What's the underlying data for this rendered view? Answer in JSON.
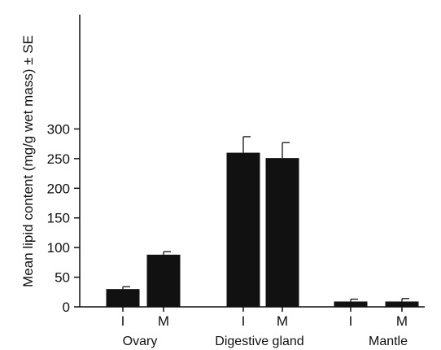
{
  "chart_data": {
    "type": "bar",
    "ylabel": "Mean lipid content (mg/g wet mass) ± SE",
    "ylim": [
      0,
      320
    ],
    "yticks": [
      0,
      50,
      100,
      150,
      200,
      250,
      300
    ],
    "grid": false,
    "groups": [
      {
        "name": "Ovary",
        "bars": [
          {
            "label": "I",
            "value": 30,
            "error": 4
          },
          {
            "label": "M",
            "value": 88,
            "error": 5
          }
        ]
      },
      {
        "name": "Digestive gland",
        "bars": [
          {
            "label": "I",
            "value": 260,
            "error": 27
          },
          {
            "label": "M",
            "value": 251,
            "error": 26
          }
        ]
      },
      {
        "name": "Mantle",
        "bars": [
          {
            "label": "I",
            "value": 9,
            "error": 4
          },
          {
            "label": "M",
            "value": 9,
            "error": 5
          }
        ]
      }
    ],
    "colors": {
      "bar": "#111111",
      "axis": "#111111"
    }
  }
}
